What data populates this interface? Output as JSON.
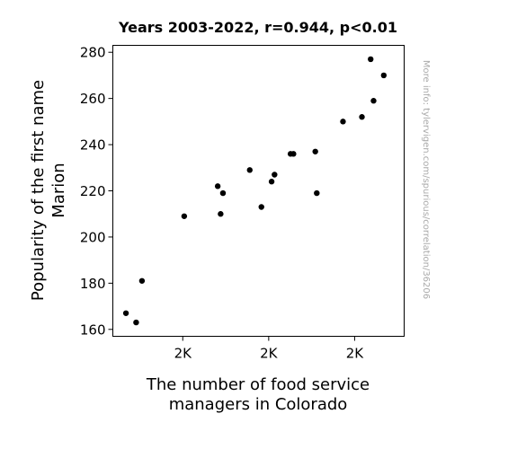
{
  "chart_data": {
    "type": "scatter",
    "title": "Years 2003-2022, r=0.944, p<0.01",
    "xlabel": [
      "The number of food service",
      "managers in Colorado"
    ],
    "ylabel": [
      "Popularity of the first name",
      "Marion"
    ],
    "xlim": [
      0.0,
      1.0
    ],
    "ylim": [
      157,
      283
    ],
    "y_ticks": [
      160,
      180,
      200,
      220,
      240,
      260,
      280
    ],
    "x_ticks": [
      {
        "pos": 0.24,
        "label": "2K"
      },
      {
        "pos": 0.535,
        "label": "2K"
      },
      {
        "pos": 0.83,
        "label": "2K"
      }
    ],
    "marker_color": "#000000",
    "points": [
      {
        "x": 0.045,
        "y": 167
      },
      {
        "x": 0.08,
        "y": 163
      },
      {
        "x": 0.1,
        "y": 181
      },
      {
        "x": 0.245,
        "y": 209
      },
      {
        "x": 0.36,
        "y": 222
      },
      {
        "x": 0.37,
        "y": 210
      },
      {
        "x": 0.378,
        "y": 219
      },
      {
        "x": 0.47,
        "y": 229
      },
      {
        "x": 0.51,
        "y": 213
      },
      {
        "x": 0.545,
        "y": 224
      },
      {
        "x": 0.555,
        "y": 227
      },
      {
        "x": 0.61,
        "y": 236
      },
      {
        "x": 0.62,
        "y": 236
      },
      {
        "x": 0.695,
        "y": 237
      },
      {
        "x": 0.7,
        "y": 219
      },
      {
        "x": 0.79,
        "y": 250
      },
      {
        "x": 0.855,
        "y": 252
      },
      {
        "x": 0.885,
        "y": 277
      },
      {
        "x": 0.895,
        "y": 259
      },
      {
        "x": 0.93,
        "y": 270
      }
    ],
    "watermark": "More info: tylervigen.com/spurious/correlation/36206"
  }
}
